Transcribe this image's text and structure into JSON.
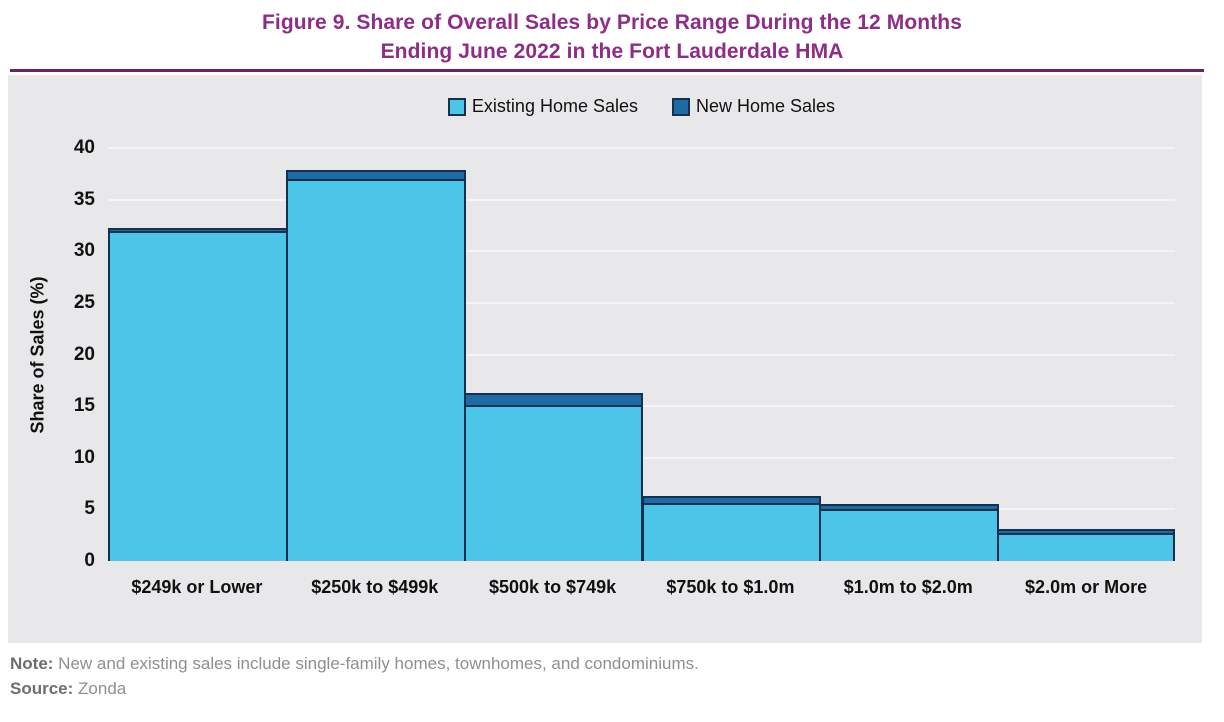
{
  "title": {
    "line1": "Figure 9. Share of Overall Sales by Price Range During the 12 Months",
    "line2": "Ending June 2022 in the Fort Lauderdale HMA"
  },
  "legend": [
    {
      "label": "Existing Home Sales",
      "color": "#4CC5E9"
    },
    {
      "label": "New Home Sales",
      "color": "#1D6AA5"
    }
  ],
  "chart_data": {
    "type": "bar",
    "stacked": true,
    "title": "Figure 9. Share of Overall Sales by Price Range During the 12 Months Ending June 2022 in the Fort Lauderdale HMA",
    "categories": [
      "$249k or Lower",
      "$250k to $499k",
      "$500k to $749k",
      "$750k to $1.0m",
      "$1.0m to $2.0m",
      "$2.0m or More"
    ],
    "series": [
      {
        "name": "Existing Home Sales",
        "color": "#4CC5E9",
        "values": [
          32.0,
          37.0,
          15.1,
          5.6,
          5.0,
          2.7
        ]
      },
      {
        "name": "New Home Sales",
        "color": "#1D6AA5",
        "values": [
          0.1,
          0.7,
          1.0,
          0.5,
          0.3,
          0.2
        ]
      }
    ],
    "xlabel": "",
    "ylabel": "Share of Sales (%)",
    "ylim": [
      0,
      40
    ],
    "y_ticks": [
      0,
      5,
      10,
      15,
      20,
      25,
      30,
      35,
      40
    ],
    "grid": true,
    "legend_position": "top-center",
    "bar_border_color": "#16314D"
  },
  "note": {
    "note_label": "Note:",
    "note_text": " New and existing sales include single-family homes, townhomes, and condominiums.",
    "source_label": "Source:",
    "source_text": " Zonda"
  },
  "colors": {
    "title_purple": "#8E2C88",
    "divider_purple": "#692563",
    "panel_gray": "#E8E8EA",
    "gridline_gray": "#F4F4F5",
    "existing_blue": "#4CC5E9",
    "new_blue": "#1D6AA5",
    "border_navy": "#16314D"
  }
}
